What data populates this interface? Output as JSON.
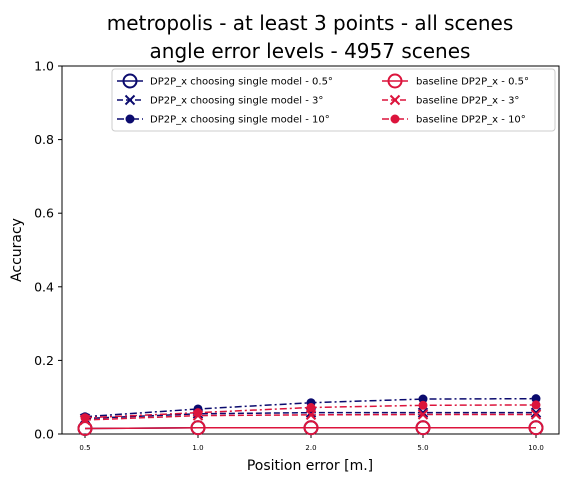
{
  "chart_data": {
    "type": "line",
    "title_line1": "metropolis - at least 3 points - all scenes",
    "title_line2": "angle error levels - 4957 scenes",
    "xlabel": "Position error [m.]",
    "ylabel": "Accuracy",
    "categories": [
      "0.5",
      "1.0",
      "2.0",
      "5.0",
      "10.0"
    ],
    "ylim": [
      0,
      1
    ],
    "yticks": [
      "0.0",
      "0.2",
      "0.4",
      "0.6",
      "0.8",
      "1.0"
    ],
    "grid": false,
    "legend_position": "top-right",
    "series": [
      {
        "name": "DP2P_x choosing single model - 0.5°",
        "values": [
          0.015,
          0.017,
          0.017,
          0.017,
          0.017
        ],
        "color": "#0b0b6e",
        "marker": "circle-open",
        "dash": "solid"
      },
      {
        "name": "DP2P_x choosing single model - 3°",
        "values": [
          0.042,
          0.055,
          0.058,
          0.058,
          0.058
        ],
        "color": "#0b0b6e",
        "marker": "x",
        "dash": "dashed"
      },
      {
        "name": "DP2P_x choosing single model - 10°",
        "values": [
          0.047,
          0.068,
          0.085,
          0.095,
          0.096
        ],
        "color": "#0b0b6e",
        "marker": "dot",
        "dash": "dashdot"
      },
      {
        "name": "baseline DP2P_x - 0.5°",
        "values": [
          0.015,
          0.017,
          0.017,
          0.017,
          0.017
        ],
        "color": "#dc143c",
        "marker": "circle-open",
        "dash": "solid"
      },
      {
        "name": "baseline DP2P_x - 3°",
        "values": [
          0.038,
          0.05,
          0.052,
          0.053,
          0.053
        ],
        "color": "#dc143c",
        "marker": "x",
        "dash": "dashed"
      },
      {
        "name": "baseline DP2P_x - 10°",
        "values": [
          0.044,
          0.058,
          0.072,
          0.078,
          0.079
        ],
        "color": "#dc143c",
        "marker": "dot",
        "dash": "dashdot"
      }
    ]
  }
}
